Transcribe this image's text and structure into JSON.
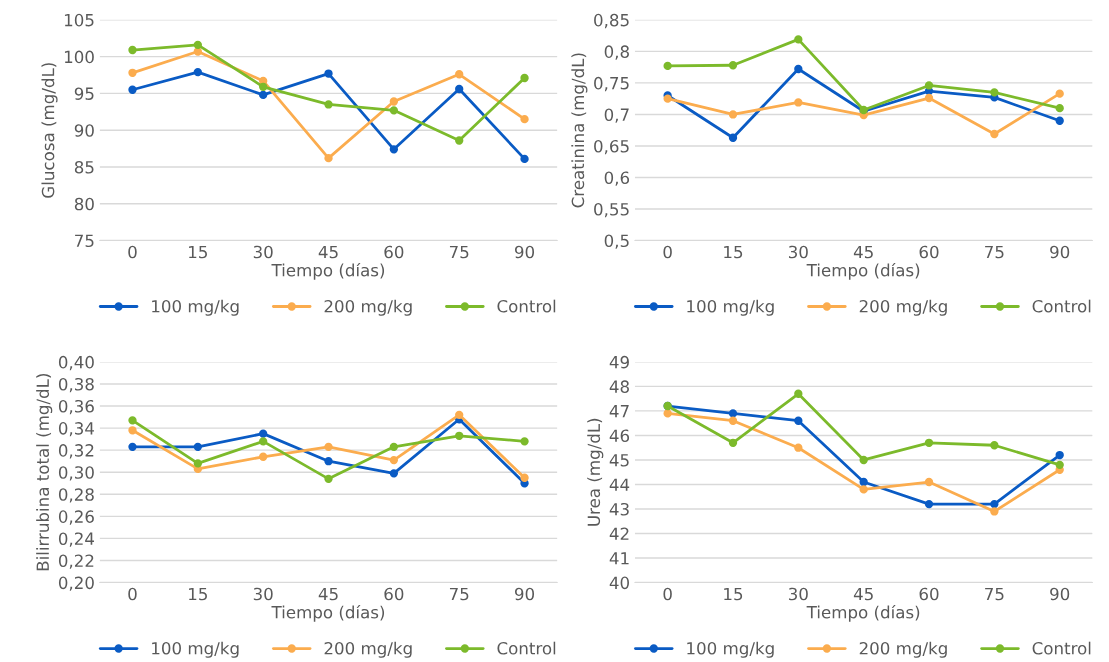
{
  "chart_data": [
    {
      "type": "line",
      "ylabel": "Glucosa (mg/dL)",
      "xlabel": "Tiempo (días)",
      "categories": [
        "0",
        "15",
        "30",
        "45",
        "60",
        "75",
        "90"
      ],
      "ylim": [
        75,
        105
      ],
      "yticks": [
        75,
        80,
        85,
        90,
        95,
        100,
        105
      ],
      "grid": "y",
      "legend": "bottom",
      "marker": "circle",
      "series": [
        {
          "name": "100 mg/kg",
          "color": "#0a5bc4",
          "values": [
            95.5,
            97.9,
            94.8,
            97.7,
            87.4,
            95.6,
            86.1
          ]
        },
        {
          "name": "200 mg/kg",
          "color": "#fbac4e",
          "values": [
            97.8,
            100.7,
            96.7,
            86.2,
            93.9,
            97.6,
            91.5
          ]
        },
        {
          "name": "Control",
          "color": "#7cba2b",
          "values": [
            100.9,
            101.6,
            95.9,
            93.5,
            92.7,
            88.6,
            97.1
          ]
        }
      ]
    },
    {
      "type": "line",
      "ylabel": "Creatinina (mg/dL)",
      "xlabel": "Tiempo (días)",
      "categories": [
        "0",
        "15",
        "30",
        "45",
        "60",
        "75",
        "90"
      ],
      "ylim": [
        0.5,
        0.85
      ],
      "yticks": [
        {
          "value": 0.5,
          "label": "0,5"
        },
        {
          "value": 0.55,
          "label": "0,55"
        },
        {
          "value": 0.6,
          "label": "0,6"
        },
        {
          "value": 0.65,
          "label": "0,65"
        },
        {
          "value": 0.7,
          "label": "0,7"
        },
        {
          "value": 0.75,
          "label": "0,75"
        },
        {
          "value": 0.8,
          "label": "0,8"
        },
        {
          "value": 0.85,
          "label": "0,85"
        }
      ],
      "grid": "y",
      "legend": "bottom",
      "marker": "circle",
      "series": [
        {
          "name": "100 mg/kg",
          "color": "#0a5bc4",
          "values": [
            0.73,
            0.663,
            0.772,
            0.705,
            0.737,
            0.727,
            0.69
          ]
        },
        {
          "name": "200 mg/kg",
          "color": "#fbac4e",
          "values": [
            0.725,
            0.7,
            0.719,
            0.699,
            0.726,
            0.669,
            0.733
          ]
        },
        {
          "name": "Control",
          "color": "#7cba2b",
          "values": [
            0.777,
            0.778,
            0.819,
            0.707,
            0.746,
            0.735,
            0.71
          ]
        }
      ]
    },
    {
      "type": "line",
      "ylabel": "Bilirrubina total (mg/dL)",
      "xlabel": "Tiempo (días)",
      "categories": [
        "0",
        "15",
        "30",
        "45",
        "60",
        "75",
        "90"
      ],
      "ylim": [
        0.2,
        0.4
      ],
      "yticks": [
        {
          "value": 0.2,
          "label": "0,20"
        },
        {
          "value": 0.22,
          "label": "0,22"
        },
        {
          "value": 0.24,
          "label": "0,24"
        },
        {
          "value": 0.26,
          "label": "0,26"
        },
        {
          "value": 0.28,
          "label": "0,28"
        },
        {
          "value": 0.3,
          "label": "0,30"
        },
        {
          "value": 0.32,
          "label": "0,32"
        },
        {
          "value": 0.34,
          "label": "0,34"
        },
        {
          "value": 0.36,
          "label": "0,36"
        },
        {
          "value": 0.38,
          "label": "0,38"
        },
        {
          "value": 0.4,
          "label": "0,40"
        }
      ],
      "grid": "y",
      "legend": "bottom",
      "marker": "circle",
      "series": [
        {
          "name": "100 mg/kg",
          "color": "#0a5bc4",
          "values": [
            0.323,
            0.323,
            0.335,
            0.31,
            0.299,
            0.348,
            0.29
          ]
        },
        {
          "name": "200 mg/kg",
          "color": "#fbac4e",
          "values": [
            0.338,
            0.303,
            0.314,
            0.323,
            0.311,
            0.352,
            0.295
          ]
        },
        {
          "name": "Control",
          "color": "#7cba2b",
          "values": [
            0.347,
            0.308,
            0.328,
            0.294,
            0.323,
            0.333,
            0.328
          ]
        }
      ]
    },
    {
      "type": "line",
      "ylabel": "Urea (mg/dL)",
      "xlabel": "Tiempo (días)",
      "categories": [
        "0",
        "15",
        "30",
        "45",
        "60",
        "75",
        "90"
      ],
      "ylim": [
        40,
        49
      ],
      "yticks": [
        40,
        41,
        42,
        43,
        44,
        45,
        46,
        47,
        48,
        49
      ],
      "grid": "y",
      "legend": "bottom",
      "marker": "circle",
      "series": [
        {
          "name": "100 mg/kg",
          "color": "#0a5bc4",
          "values": [
            47.2,
            46.9,
            46.6,
            44.1,
            43.2,
            43.2,
            45.2
          ]
        },
        {
          "name": "200 mg/kg",
          "color": "#fbac4e",
          "values": [
            46.9,
            46.6,
            45.5,
            43.8,
            44.1,
            42.9,
            44.6
          ]
        },
        {
          "name": "Control",
          "color": "#7cba2b",
          "values": [
            47.2,
            45.7,
            47.7,
            45.0,
            45.7,
            45.6,
            44.8
          ]
        }
      ]
    }
  ]
}
